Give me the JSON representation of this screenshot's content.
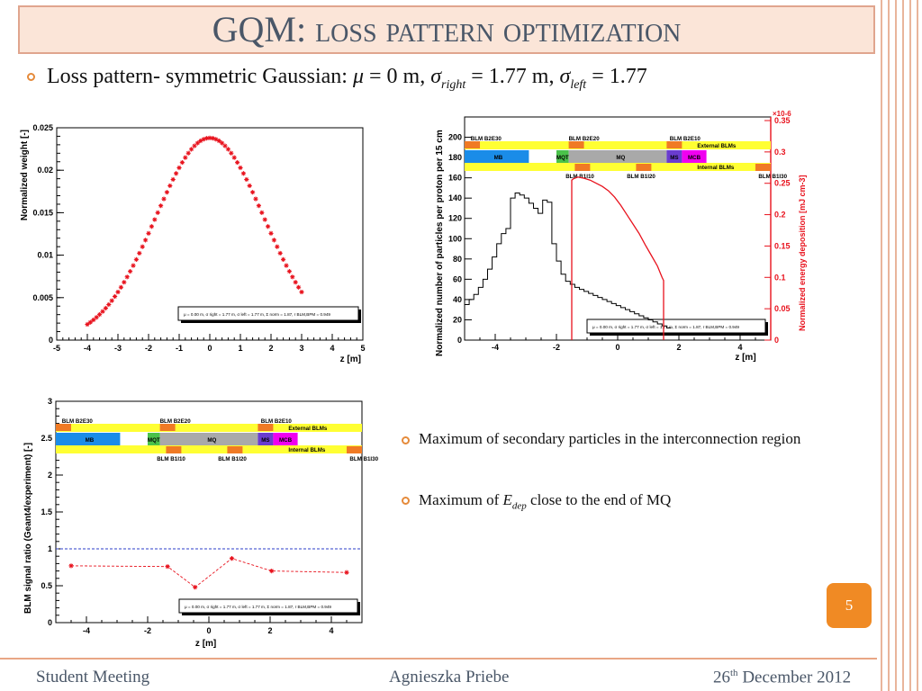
{
  "slide": {
    "title_main": "GQM: ",
    "title_sc": "loss pattern optimization",
    "bullet_main_prefix": "Loss pattern- symmetric Gaussian: ",
    "mu": "μ",
    "mu_value": " = 0 m, ",
    "sigma": "σ",
    "sub_right": "right",
    "sigma_right_value": " = 1.77 m, ",
    "sub_left": "left",
    "sigma_left_value": " = 1.77",
    "bullet1": "Maximum of secondary particles in the interconnection region",
    "bullet2_prefix": "Maximum of ",
    "bullet2_var": "E",
    "bullet2_sub": "dep",
    "bullet2_suffix": " close to the end of MQ",
    "page_number": "5",
    "footer_left": "Student Meeting",
    "footer_center": "Agnieszka Priebe",
    "footer_right_pre": "26",
    "footer_right_sup": "th",
    "footer_right_post": " December 2012"
  },
  "colors": {
    "accent": "#e58a3a",
    "title_bg": "#fbe5d8",
    "title_border": "#e0a58e",
    "title_text": "#4a5768",
    "red": "#e8121d",
    "blue_dash": "#2b3cc8",
    "yellow": "#ffff33",
    "orange_blm": "#f07a24"
  },
  "chart_data": [
    {
      "type": "scatter",
      "title": "",
      "xlabel": "z [m]",
      "ylabel": "Normalized weight [-]",
      "xlim": [
        -5,
        5
      ],
      "ylim": [
        0,
        0.025
      ],
      "xticks": [
        "-5",
        "-4",
        "-3",
        "-2",
        "-1",
        "0",
        "1",
        "2",
        "3",
        "4",
        "5"
      ],
      "yticks": [
        "0",
        "0.005",
        "0.01",
        "0.015",
        "0.02",
        "0.025"
      ],
      "series": [
        {
          "marker": "star",
          "color": "#e8121d",
          "x_range": [
            -4,
            3
          ],
          "step": 0.1,
          "mu": 0,
          "sigma": 1.77,
          "peak": 0.0238
        }
      ],
      "legend_text": "μ = 0.00 m, σ right = 1.77 m, σ left = 1.77 m, Σ norm = 1.87, r BLM,BPM = 0.949"
    },
    {
      "type": "line",
      "title": "",
      "xlabel": "z [m]",
      "ylabel": "Normalized number of particles per proton per 15 cm",
      "ylabel_right": "Normalized energy deposition [mJ cm-3]",
      "right_axis_multiplier": "×10-6",
      "xlim": [
        -5,
        5
      ],
      "ylim": [
        0,
        220
      ],
      "ylim_right": [
        0,
        0.35
      ],
      "xticks": [
        "-4",
        "-2",
        "0",
        "2",
        "4"
      ],
      "yticks": [
        "0",
        "20",
        "40",
        "60",
        "80",
        "100",
        "120",
        "140",
        "160",
        "180",
        "200"
      ],
      "yticks_right": [
        "0",
        "0.05",
        "0.1",
        "0.15",
        "0.2",
        "0.25",
        "0.3",
        "0.35"
      ],
      "series": [
        {
          "name": "",
          "color": "#000000",
          "step": true,
          "x": [
            -5.0,
            -4.85,
            -4.7,
            -4.55,
            -4.4,
            -4.25,
            -4.1,
            -3.95,
            -3.8,
            -3.65,
            -3.5,
            -3.35,
            -3.2,
            -3.05,
            -2.9,
            -2.75,
            -2.6,
            -2.45,
            -2.3,
            -2.15,
            -2.0,
            -1.85,
            -1.7,
            -1.55,
            -1.4,
            -1.25,
            -1.1,
            -0.95,
            -0.8,
            -0.65,
            -0.5,
            -0.35,
            -0.2,
            -0.05,
            0.1,
            0.25,
            0.4,
            0.55,
            0.7,
            0.85,
            1.0,
            1.15,
            1.3,
            1.45,
            1.6
          ],
          "y": [
            35,
            40,
            45,
            52,
            60,
            70,
            82,
            95,
            105,
            110,
            140,
            145,
            143,
            140,
            135,
            130,
            125,
            138,
            136,
            95,
            78,
            65,
            58,
            55,
            52,
            50,
            48,
            46,
            44,
            42,
            40,
            38,
            36,
            34,
            32,
            30,
            28,
            26,
            24,
            22,
            20,
            18,
            16,
            14,
            12
          ]
        },
        {
          "name": "",
          "color": "#e8121d",
          "axis": "right",
          "x": [
            -1.5,
            -1.5,
            -1.45,
            -1.3,
            -1.1,
            -0.9,
            -0.7,
            -0.5,
            -0.3,
            -0.1,
            0.1,
            0.3,
            0.5,
            0.7,
            0.9,
            1.1,
            1.3,
            1.45,
            1.5,
            1.5
          ],
          "y": [
            0,
            0.255,
            0.257,
            0.26,
            0.258,
            0.255,
            0.25,
            0.245,
            0.238,
            0.228,
            0.215,
            0.2,
            0.185,
            0.17,
            0.152,
            0.135,
            0.118,
            0.1,
            0.095,
            0
          ]
        }
      ],
      "elements": {
        "labels": [
          "BLM B2E30",
          "BLM B2E20",
          "BLM B2E10",
          "MB",
          "MQT",
          "MQ",
          "MS",
          "MCB",
          "External BLMs",
          "Internal BLMs",
          "BLM B1I10",
          "BLM B1I20",
          "BLM B1I30"
        ]
      },
      "legend_text": "μ = 0.00 m, σ right = 1.77 m, σ left = 1.77 m, Σ norm = 1.87, r BLM,BPM = 0.949"
    },
    {
      "type": "scatter",
      "title": "",
      "xlabel": "z [m]",
      "ylabel": "BLM signal ratio (Geant4/experiment) [-]",
      "xlim": [
        -5,
        5
      ],
      "ylim": [
        0,
        3
      ],
      "xticks": [
        "-4",
        "-2",
        "0",
        "2",
        "4"
      ],
      "yticks": [
        "0",
        "0.5",
        "1",
        "1.5",
        "2",
        "2.5",
        "3"
      ],
      "series": [
        {
          "name": "",
          "color": "#e8121d",
          "x": [
            -4.5,
            -1.35,
            -0.45,
            0.75,
            2.05,
            4.5
          ],
          "y": [
            0.77,
            0.76,
            0.48,
            0.87,
            0.7,
            0.68
          ]
        }
      ],
      "reference_line": 1,
      "elements": {
        "labels": [
          "BLM B2E30",
          "BLM B2E20",
          "BLM B2E10",
          "MB",
          "MQT",
          "MQ",
          "MS",
          "MCB",
          "External BLMs",
          "Internal BLMs",
          "BLM B1I10",
          "BLM B1I20",
          "BLM B1I30"
        ]
      },
      "legend_text": "μ = 0.00 m, σ right = 1.77 m, σ left = 1.77 m, Σ norm = 1.87, r BLM,BPM = 0.949"
    }
  ]
}
